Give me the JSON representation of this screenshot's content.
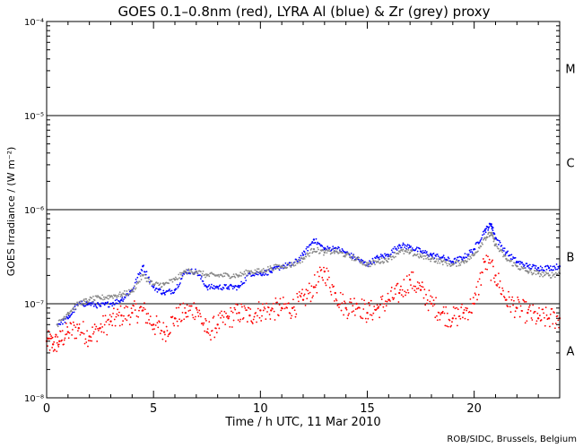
{
  "chart_data": {
    "type": "scatter",
    "title": "GOES 0.1–0.8nm (red), LYRA Al (blue) & Zr (grey) proxy",
    "xlabel": "Time / h UTC, 11 Mar 2010",
    "ylabel": "GOES Irradiance / (W m⁻²)",
    "credit": "ROB/SIDC, Brussels, Belgium",
    "x_range": [
      0,
      24
    ],
    "y_range_log10": [
      -8,
      -4
    ],
    "x_ticks": [
      {
        "value": 0,
        "label": "0"
      },
      {
        "value": 5,
        "label": "5"
      },
      {
        "value": 10,
        "label": "10"
      },
      {
        "value": 15,
        "label": "15"
      },
      {
        "value": 20,
        "label": "20"
      }
    ],
    "y_ticks": [
      {
        "exp": -8,
        "label": "10⁻⁸"
      },
      {
        "exp": -7,
        "label": "10⁻⁷"
      },
      {
        "exp": -6,
        "label": "10⁻⁶"
      },
      {
        "exp": -5,
        "label": "10⁻⁵"
      },
      {
        "exp": -4,
        "label": "10⁻⁴"
      }
    ],
    "class_thresholds_log10": [
      -7,
      -6,
      -5
    ],
    "flare_classes": [
      {
        "label": "A",
        "log10": -7.5
      },
      {
        "label": "B",
        "log10": -6.5
      },
      {
        "label": "C",
        "log10": -5.5
      },
      {
        "label": "M",
        "log10": -4.5
      }
    ],
    "series": [
      {
        "name": "GOES 0.1–0.8nm",
        "color": "#ff0000",
        "points": [
          [
            0.0,
            4e-08
          ],
          [
            0.3,
            3.7e-08
          ],
          [
            0.6,
            4e-08
          ],
          [
            1.0,
            5e-08
          ],
          [
            1.5,
            5.5e-08
          ],
          [
            2.0,
            4.5e-08
          ],
          [
            2.5,
            5.5e-08
          ],
          [
            3.0,
            6.5e-08
          ],
          [
            3.5,
            7.5e-08
          ],
          [
            4.0,
            8e-08
          ],
          [
            4.5,
            8.5e-08
          ],
          [
            5.0,
            6e-08
          ],
          [
            5.5,
            5e-08
          ],
          [
            6.0,
            7e-08
          ],
          [
            6.5,
            8e-08
          ],
          [
            7.0,
            9e-08
          ],
          [
            7.5,
            5e-08
          ],
          [
            8.0,
            6e-08
          ],
          [
            8.5,
            7e-08
          ],
          [
            9.0,
            8e-08
          ],
          [
            9.5,
            7.5e-08
          ],
          [
            10.0,
            8.5e-08
          ],
          [
            10.5,
            8.5e-08
          ],
          [
            11.0,
            9e-08
          ],
          [
            11.5,
            9e-08
          ],
          [
            12.0,
            1.1e-07
          ],
          [
            12.5,
            1.5e-07
          ],
          [
            13.0,
            2.2e-07
          ],
          [
            13.5,
            1.3e-07
          ],
          [
            14.0,
            9e-08
          ],
          [
            14.5,
            1e-07
          ],
          [
            15.0,
            8e-08
          ],
          [
            15.5,
            9e-08
          ],
          [
            16.0,
            1.1e-07
          ],
          [
            16.5,
            1.3e-07
          ],
          [
            17.0,
            1.8e-07
          ],
          [
            17.5,
            1.4e-07
          ],
          [
            18.0,
            1e-07
          ],
          [
            18.5,
            8e-08
          ],
          [
            19.0,
            7e-08
          ],
          [
            19.5,
            8e-08
          ],
          [
            20.0,
            1e-07
          ],
          [
            20.5,
            2.8e-07
          ],
          [
            21.0,
            2e-07
          ],
          [
            21.5,
            1.1e-07
          ],
          [
            22.0,
            9e-08
          ],
          [
            22.5,
            8e-08
          ],
          [
            23.0,
            7e-08
          ],
          [
            23.5,
            7e-08
          ],
          [
            24.0,
            7e-08
          ]
        ]
      },
      {
        "name": "LYRA Al proxy",
        "color": "#0000ff",
        "points": [
          [
            0.5,
            6e-08
          ],
          [
            1.0,
            7e-08
          ],
          [
            1.5,
            1e-07
          ],
          [
            2.0,
            1e-07
          ],
          [
            2.5,
            9.5e-08
          ],
          [
            3.0,
            1e-07
          ],
          [
            3.5,
            1.1e-07
          ],
          [
            4.0,
            1.4e-07
          ],
          [
            4.5,
            2.5e-07
          ],
          [
            5.0,
            1.5e-07
          ],
          [
            5.5,
            1.3e-07
          ],
          [
            6.0,
            1.4e-07
          ],
          [
            6.5,
            2.2e-07
          ],
          [
            7.0,
            2.2e-07
          ],
          [
            7.5,
            1.5e-07
          ],
          [
            8.0,
            1.5e-07
          ],
          [
            8.5,
            1.5e-07
          ],
          [
            9.0,
            1.5e-07
          ],
          [
            9.5,
            2.1e-07
          ],
          [
            10.0,
            2.1e-07
          ],
          [
            10.5,
            2.2e-07
          ],
          [
            11.0,
            2.5e-07
          ],
          [
            11.5,
            2.6e-07
          ],
          [
            12.0,
            3.3e-07
          ],
          [
            12.5,
            4.8e-07
          ],
          [
            13.0,
            3.8e-07
          ],
          [
            13.5,
            3.9e-07
          ],
          [
            14.0,
            3.5e-07
          ],
          [
            14.5,
            3e-07
          ],
          [
            15.0,
            2.6e-07
          ],
          [
            15.5,
            3.1e-07
          ],
          [
            16.0,
            3.3e-07
          ],
          [
            16.5,
            4.2e-07
          ],
          [
            17.0,
            4e-07
          ],
          [
            17.5,
            3.6e-07
          ],
          [
            18.0,
            3.3e-07
          ],
          [
            18.5,
            3.1e-07
          ],
          [
            19.0,
            2.8e-07
          ],
          [
            19.5,
            3.1e-07
          ],
          [
            20.0,
            3.8e-07
          ],
          [
            20.5,
            6e-07
          ],
          [
            20.8,
            7e-07
          ],
          [
            21.0,
            5e-07
          ],
          [
            21.5,
            3.5e-07
          ],
          [
            22.0,
            2.8e-07
          ],
          [
            22.5,
            2.5e-07
          ],
          [
            23.0,
            2.4e-07
          ],
          [
            23.5,
            2.4e-07
          ],
          [
            24.0,
            2.5e-07
          ]
        ]
      },
      {
        "name": "LYRA Zr proxy",
        "color": "#888888",
        "points": [
          [
            0.5,
            6e-08
          ],
          [
            1.0,
            8e-08
          ],
          [
            1.5,
            1e-07
          ],
          [
            2.0,
            1.1e-07
          ],
          [
            2.5,
            1.15e-07
          ],
          [
            3.0,
            1.2e-07
          ],
          [
            3.5,
            1.25e-07
          ],
          [
            4.0,
            1.35e-07
          ],
          [
            4.5,
            2e-07
          ],
          [
            5.0,
            1.6e-07
          ],
          [
            5.5,
            1.6e-07
          ],
          [
            6.0,
            1.8e-07
          ],
          [
            6.5,
            2.2e-07
          ],
          [
            7.0,
            2.2e-07
          ],
          [
            7.5,
            2e-07
          ],
          [
            8.0,
            2e-07
          ],
          [
            8.5,
            2e-07
          ],
          [
            9.0,
            2e-07
          ],
          [
            9.5,
            2.2e-07
          ],
          [
            10.0,
            2.2e-07
          ],
          [
            10.5,
            2.4e-07
          ],
          [
            11.0,
            2.5e-07
          ],
          [
            11.5,
            2.6e-07
          ],
          [
            12.0,
            3e-07
          ],
          [
            12.5,
            3.8e-07
          ],
          [
            13.0,
            3.5e-07
          ],
          [
            13.5,
            3.6e-07
          ],
          [
            14.0,
            3.3e-07
          ],
          [
            14.5,
            3e-07
          ],
          [
            15.0,
            2.6e-07
          ],
          [
            15.5,
            2.8e-07
          ],
          [
            16.0,
            3e-07
          ],
          [
            16.5,
            3.6e-07
          ],
          [
            17.0,
            3.5e-07
          ],
          [
            17.5,
            3.2e-07
          ],
          [
            18.0,
            3e-07
          ],
          [
            18.5,
            2.8e-07
          ],
          [
            19.0,
            2.6e-07
          ],
          [
            19.5,
            2.8e-07
          ],
          [
            20.0,
            3.3e-07
          ],
          [
            20.5,
            5e-07
          ],
          [
            20.8,
            5.6e-07
          ],
          [
            21.0,
            4.2e-07
          ],
          [
            21.5,
            3e-07
          ],
          [
            22.0,
            2.5e-07
          ],
          [
            22.5,
            2.2e-07
          ],
          [
            23.0,
            2.1e-07
          ],
          [
            23.5,
            2e-07
          ],
          [
            24.0,
            2.1e-07
          ]
        ]
      }
    ]
  }
}
